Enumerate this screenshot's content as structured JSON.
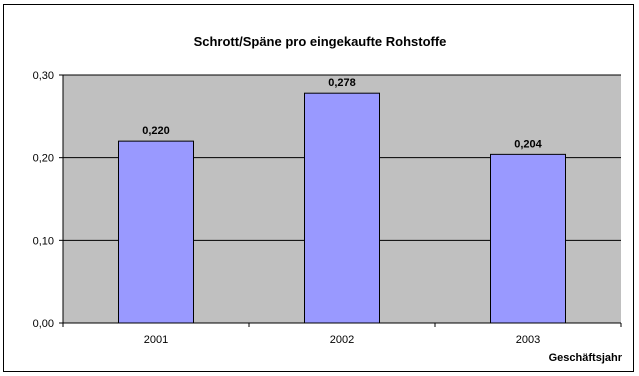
{
  "chart_data": {
    "type": "bar",
    "title": "Schrott/Späne pro eingekaufte Rohstoffe",
    "xlabel": "Geschäftsjahr",
    "ylabel": "",
    "categories": [
      "2001",
      "2002",
      "2003"
    ],
    "values": [
      0.22,
      0.278,
      0.204
    ],
    "data_labels": [
      "0,220",
      "0,278",
      "0,204"
    ],
    "ylim": [
      0,
      0.3
    ],
    "y_ticks": [
      0.0,
      0.1,
      0.2,
      0.3
    ],
    "y_tick_labels": [
      "0,00",
      "0,10",
      "0,20",
      "0,30"
    ],
    "grid": true,
    "legend": "none",
    "colors": {
      "plot_background": "#c0c0c0",
      "bar_fill": "#9999ff",
      "bar_stroke": "#000000",
      "gridline": "#000000"
    }
  }
}
